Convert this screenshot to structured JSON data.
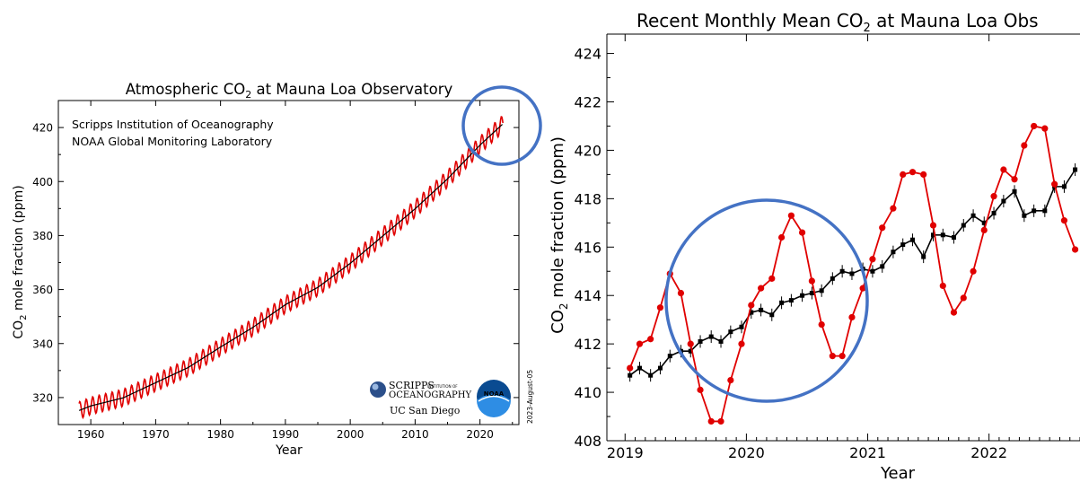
{
  "chart_data": [
    {
      "type": "line",
      "title": "Atmospheric CO",
      "title_sub": "2",
      "title_rest": " at Mauna Loa Observatory",
      "xlabel": "Year",
      "ylabel": "CO",
      "ylabel_sub": "2",
      "ylabel_rest": " mole fraction (ppm)",
      "xlim": [
        1955,
        2026
      ],
      "ylim": [
        310,
        430
      ],
      "xticks": [
        1960,
        1970,
        1980,
        1990,
        2000,
        2010,
        2020
      ],
      "yticks": [
        320,
        340,
        360,
        380,
        400,
        420
      ],
      "annotations": [
        "Scripps Institution of Oceanography",
        "NOAA Global Monitoring Laboratory"
      ],
      "date_note": "2023-August-05",
      "logos": {
        "scripps_line1": "SCRIPPS",
        "scripps_small": "INSTITUTION OF",
        "scripps_line2": "OCEANOGRAPHY",
        "ucsd": "UC San Diego",
        "noaa": "NOAA"
      },
      "series": [
        {
          "color": "#e00000",
          "seasonal_amplitude": 3.2,
          "trend_points": [
            [
              1958.2,
              315.2
            ],
            [
              1960,
              316.9
            ],
            [
              1965,
              319.9
            ],
            [
              1970,
              325.5
            ],
            [
              1975,
              331.1
            ],
            [
              1980,
              338.7
            ],
            [
              1985,
              346.0
            ],
            [
              1990,
              354.4
            ],
            [
              1995,
              360.8
            ],
            [
              2000,
              369.7
            ],
            [
              2005,
              379.8
            ],
            [
              2010,
              389.9
            ],
            [
              2015,
              401.0
            ],
            [
              2020,
              413.5
            ],
            [
              2023.6,
              421.5
            ]
          ]
        },
        {
          "color": "#000000",
          "trend_points": [
            [
              1958.2,
              315.2
            ],
            [
              1960,
              316.9
            ],
            [
              1965,
              319.9
            ],
            [
              1970,
              325.5
            ],
            [
              1975,
              331.1
            ],
            [
              1980,
              338.7
            ],
            [
              1985,
              346.0
            ],
            [
              1990,
              354.4
            ],
            [
              1995,
              360.8
            ],
            [
              2000,
              369.7
            ],
            [
              2005,
              379.8
            ],
            [
              2010,
              389.9
            ],
            [
              2015,
              401.0
            ],
            [
              2020,
              413.5
            ],
            [
              2023.6,
              421.5
            ]
          ]
        }
      ]
    },
    {
      "type": "line",
      "title": "Recent Monthly Mean CO",
      "title_sub": "2",
      "title_rest": " at Mauna Loa Obs",
      "xlabel": "Year",
      "ylabel": "CO",
      "ylabel_sub": "2",
      "ylabel_rest": " mole fraction (ppm)",
      "xlim": [
        2018.85,
        2022.75
      ],
      "ylim": [
        408,
        424.8
      ],
      "xticks": [
        2019,
        2020,
        2021,
        2022
      ],
      "yticks": [
        408,
        410,
        412,
        414,
        416,
        418,
        420,
        422,
        424
      ],
      "series": [
        {
          "color": "#e00000",
          "x": [
            2019.04,
            2019.12,
            2019.21,
            2019.29,
            2019.37,
            2019.46,
            2019.54,
            2019.62,
            2019.71,
            2019.79,
            2019.87,
            2019.96,
            2020.04,
            2020.12,
            2020.21,
            2020.29,
            2020.37,
            2020.46,
            2020.54,
            2020.62,
            2020.71,
            2020.79,
            2020.87,
            2020.96,
            2021.04,
            2021.12,
            2021.21,
            2021.29,
            2021.37,
            2021.46,
            2021.54,
            2021.62,
            2021.71,
            2021.79,
            2021.87,
            2021.96,
            2022.04,
            2022.12,
            2022.21,
            2022.29,
            2022.37,
            2022.46,
            2022.54,
            2022.62,
            2022.71
          ],
          "y": [
            411.0,
            412.0,
            412.2,
            413.5,
            414.9,
            414.1,
            412.0,
            410.1,
            408.8,
            408.8,
            410.5,
            412.0,
            413.6,
            414.3,
            414.7,
            416.4,
            417.3,
            416.6,
            414.6,
            412.8,
            411.5,
            411.5,
            413.1,
            414.3,
            415.5,
            416.8,
            417.6,
            419.0,
            419.1,
            419.0,
            416.9,
            414.4,
            413.3,
            413.9,
            415.0,
            416.7,
            418.1,
            419.2,
            418.8,
            420.2,
            421.0,
            420.9,
            418.6,
            417.1,
            415.9
          ]
        },
        {
          "color": "#000000",
          "x": [
            2019.04,
            2019.12,
            2019.21,
            2019.29,
            2019.37,
            2019.46,
            2019.54,
            2019.62,
            2019.71,
            2019.79,
            2019.87,
            2019.96,
            2020.04,
            2020.12,
            2020.21,
            2020.29,
            2020.37,
            2020.46,
            2020.54,
            2020.62,
            2020.71,
            2020.79,
            2020.87,
            2020.96,
            2021.04,
            2021.12,
            2021.21,
            2021.29,
            2021.37,
            2021.46,
            2021.54,
            2021.62,
            2021.71,
            2021.79,
            2021.87,
            2021.96,
            2022.04,
            2022.12,
            2022.21,
            2022.29,
            2022.37,
            2022.46,
            2022.54,
            2022.62,
            2022.71
          ],
          "y": [
            410.7,
            411.0,
            410.7,
            411.0,
            411.5,
            411.7,
            411.7,
            412.1,
            412.3,
            412.1,
            412.5,
            412.7,
            413.3,
            413.4,
            413.2,
            413.7,
            413.8,
            414.0,
            414.1,
            414.2,
            414.7,
            415.0,
            414.9,
            415.1,
            415.0,
            415.2,
            415.8,
            416.1,
            416.3,
            415.6,
            416.5,
            416.5,
            416.4,
            416.9,
            417.3,
            417.0,
            417.4,
            417.9,
            418.3,
            417.3,
            417.5,
            417.5,
            418.5,
            418.5,
            419.2
          ]
        }
      ]
    }
  ],
  "highlight_color": "#4472c4"
}
